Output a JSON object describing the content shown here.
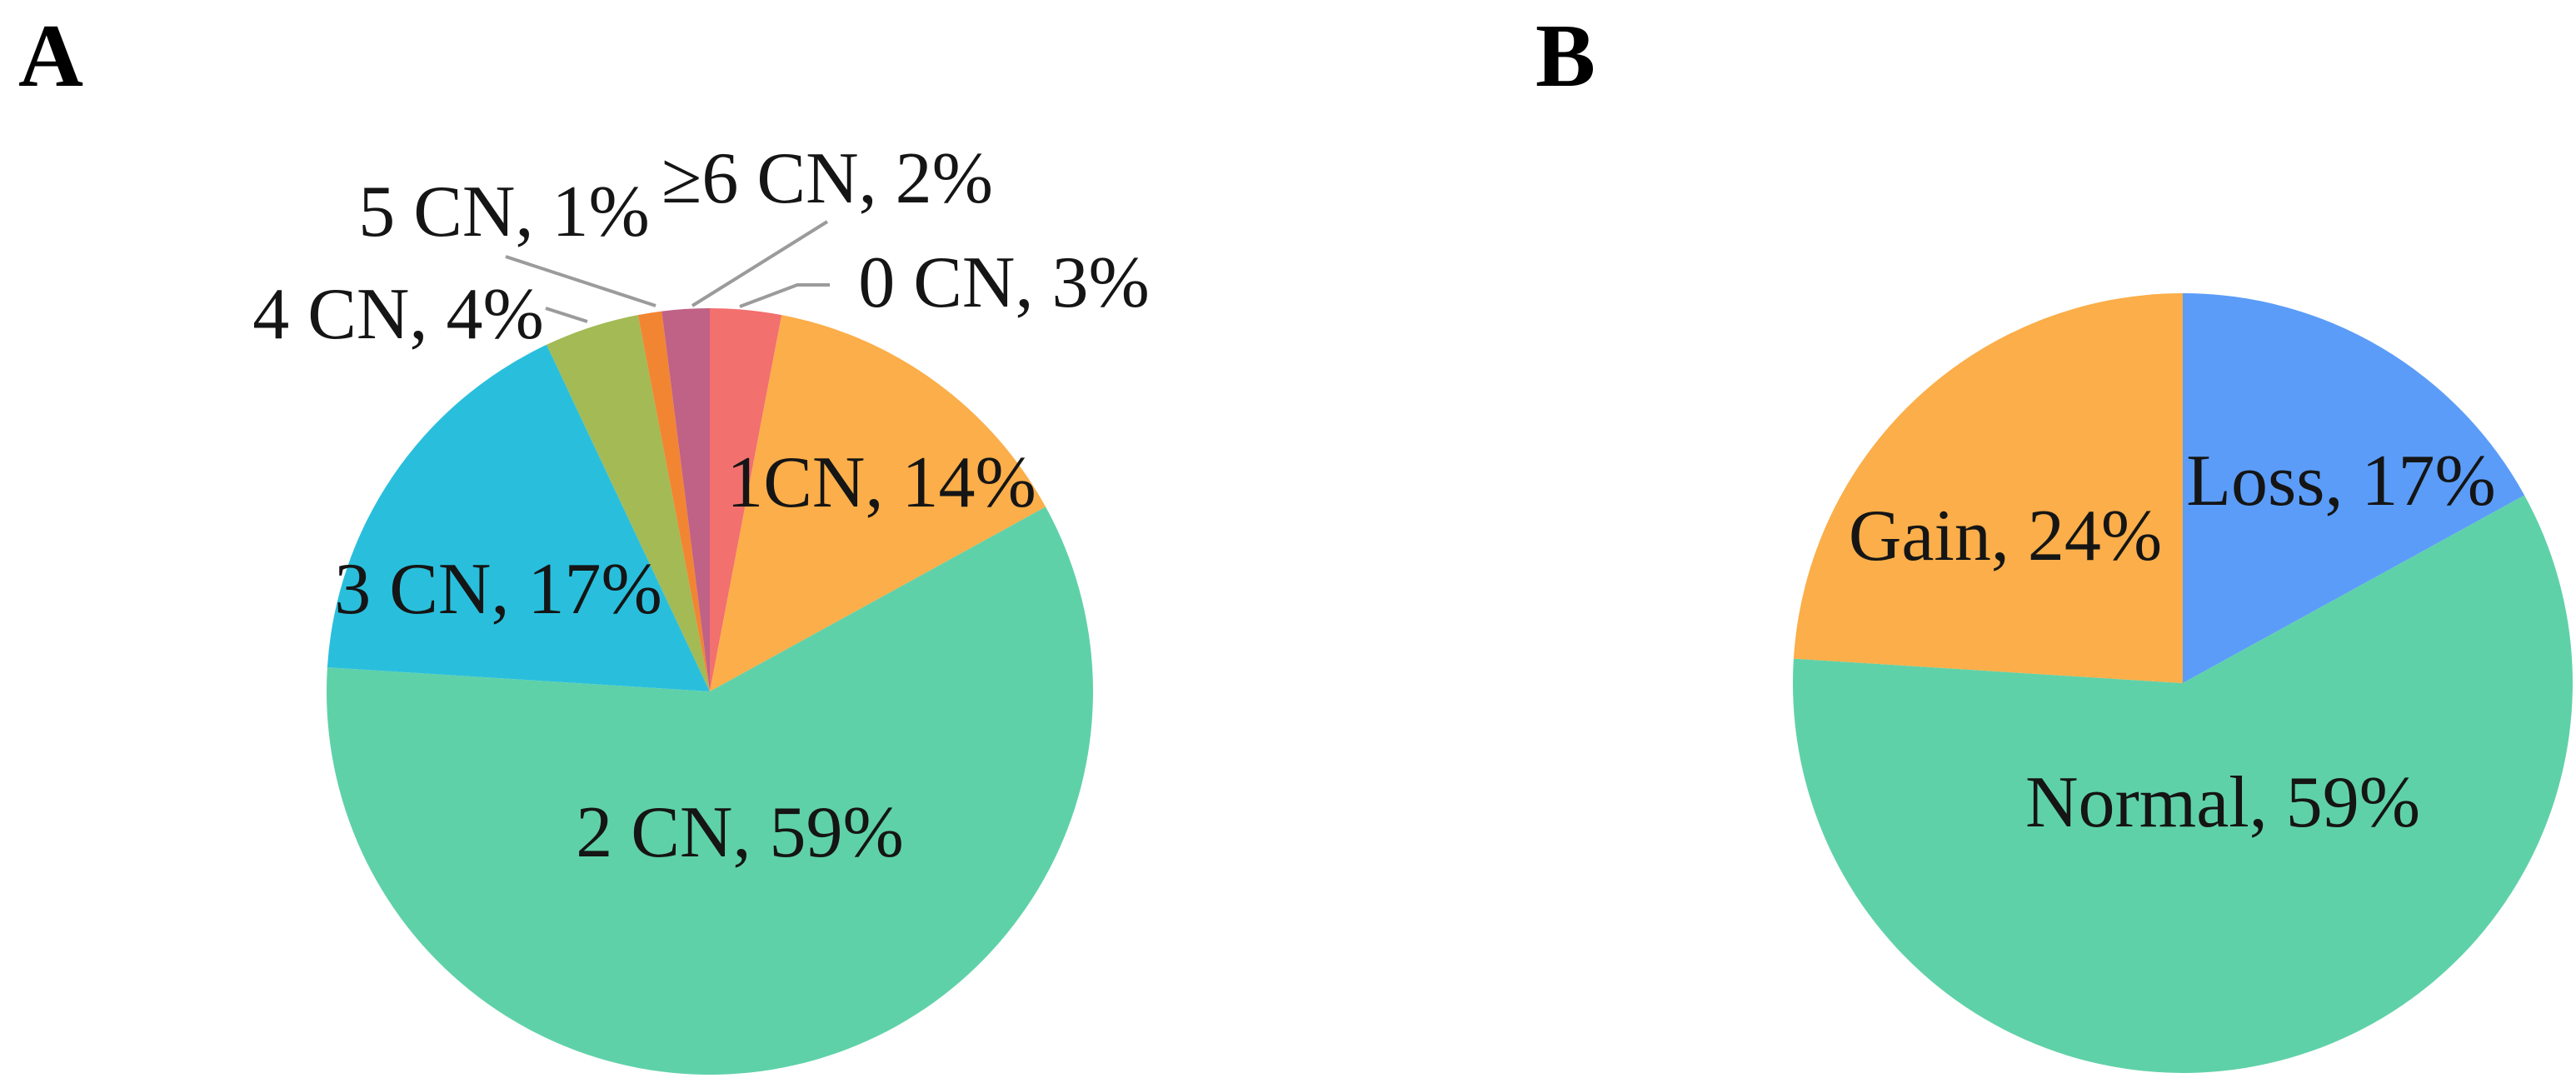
{
  "figure": {
    "panels": [
      {
        "id": "A",
        "letter": "A"
      },
      {
        "id": "B",
        "letter": "B"
      }
    ],
    "text_color": "#151515",
    "leader_line_color": "#9b9b9b",
    "background": "#ffffff"
  },
  "chart_data": [
    {
      "id": "pie-a",
      "panel": "A",
      "type": "pie",
      "title": "",
      "unit": "percent",
      "start_angle_deg": 0,
      "direction": "clockwise",
      "legend": "none",
      "slices": [
        {
          "name": "0 CN",
          "value": 3,
          "label": "0 CN, 3%",
          "color": "#f2706e",
          "label_placement": "outside"
        },
        {
          "name": "1CN",
          "value": 14,
          "label": "1CN, 14%",
          "color": "#fbae49",
          "label_placement": "inside"
        },
        {
          "name": "2 CN",
          "value": 59,
          "label": "2 CN, 59%",
          "color": "#5fd1a9",
          "label_placement": "inside"
        },
        {
          "name": "3 CN",
          "value": 17,
          "label": "3 CN, 17%",
          "color": "#29bfdc",
          "label_placement": "inside"
        },
        {
          "name": "4 CN",
          "value": 4,
          "label": "4 CN, 4%",
          "color": "#a3ba55",
          "label_placement": "outside"
        },
        {
          "name": "5 CN",
          "value": 1,
          "label": "5 CN, 1%",
          "color": "#f28532",
          "label_placement": "outside"
        },
        {
          "name": "≥6 CN",
          "value": 2,
          "label": "≥6 CN, 2%",
          "color": "#c06186",
          "label_placement": "outside"
        }
      ]
    },
    {
      "id": "pie-b",
      "panel": "B",
      "type": "pie",
      "title": "",
      "unit": "percent",
      "start_angle_deg": 0,
      "direction": "clockwise",
      "legend": "none",
      "slices": [
        {
          "name": "Loss",
          "value": 17,
          "label": "Loss, 17%",
          "color": "#5b9cf8",
          "label_placement": "inside"
        },
        {
          "name": "Normal",
          "value": 59,
          "label": "Normal, 59%",
          "color": "#5fd1a9",
          "label_placement": "inside"
        },
        {
          "name": "Gain",
          "value": 24,
          "label": "Gain, 24%",
          "color": "#fbae49",
          "label_placement": "inside"
        }
      ]
    }
  ]
}
